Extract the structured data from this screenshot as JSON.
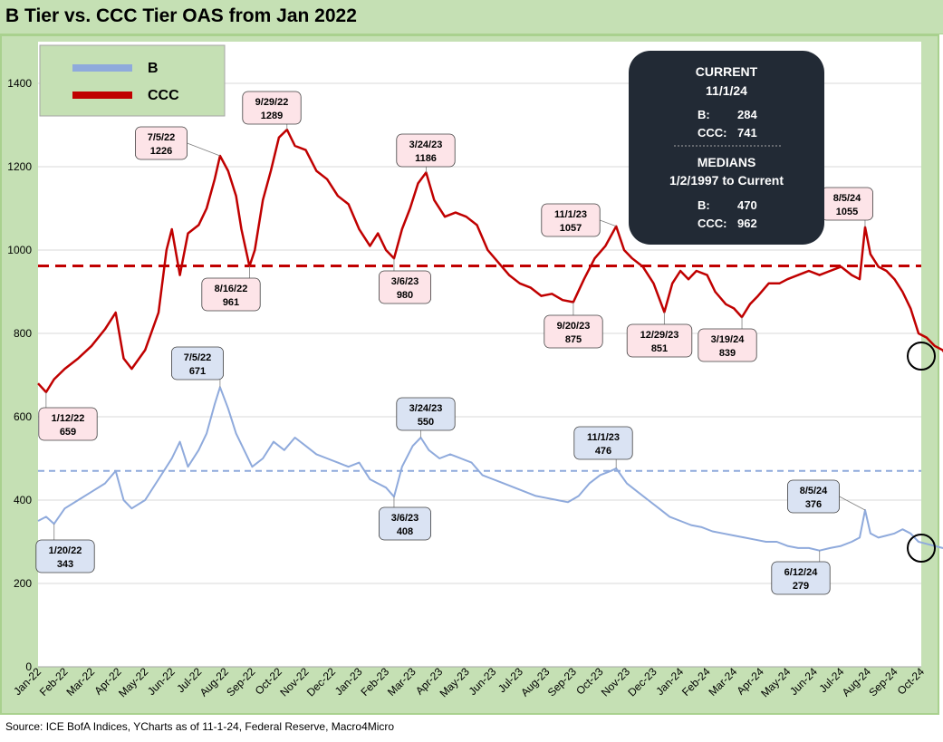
{
  "title": "B Tier vs. CCC Tier OAS from Jan 2022",
  "source": "Source: ICE BofA Indices, YCharts as of 11-1-24, Federal Reserve, Macro4Micro",
  "colors": {
    "b": "#8faadc",
    "ccc": "#c00000",
    "panel_bg": "#c5e0b4",
    "plot_bg": "#ffffff",
    "info_box": "#222a35",
    "ccc_label_bg": "#fde4e8",
    "b_label_bg": "#dae3f3"
  },
  "info_box": {
    "current_title": "CURRENT",
    "current_date": "11/1/24",
    "current_b_label": "B:",
    "current_b_value": "284",
    "current_ccc_label": "CCC:",
    "current_ccc_value": "741",
    "medians_title": "MEDIANS",
    "medians_range": "1/2/1997 to Current",
    "median_b_label": "B:",
    "median_b_value": "470",
    "median_ccc_label": "CCC:",
    "median_ccc_value": "962"
  },
  "chart_data": {
    "type": "line",
    "title": "B Tier vs. CCC Tier OAS from Jan 2022",
    "xlabel": "",
    "ylabel": "",
    "ylim": [
      0,
      1500
    ],
    "yticks": [
      0,
      200,
      400,
      600,
      800,
      1000,
      1200,
      1400
    ],
    "categories": [
      "Jan-22",
      "Feb-22",
      "Mar-22",
      "Apr-22",
      "May-22",
      "Jun-22",
      "Jul-22",
      "Aug-22",
      "Sep-22",
      "Oct-22",
      "Nov-22",
      "Dec-22",
      "Jan-23",
      "Feb-23",
      "Mar-23",
      "Apr-23",
      "May-23",
      "Jun-23",
      "Jul-23",
      "Aug-23",
      "Sep-23",
      "Oct-23",
      "Nov-23",
      "Dec-23",
      "Jan-24",
      "Feb-24",
      "Mar-24",
      "Apr-24",
      "May-24",
      "Jun-24",
      "Jul-24",
      "Aug-24",
      "Sep-24",
      "Oct-24"
    ],
    "legend": {
      "position": "top-left",
      "entries": [
        "B",
        "CCC"
      ]
    },
    "series": [
      {
        "name": "CCC",
        "color": "#c00000",
        "median": 962,
        "points": [
          [
            0,
            680
          ],
          [
            0.3,
            659
          ],
          [
            0.6,
            690
          ],
          [
            1,
            715
          ],
          [
            1.5,
            740
          ],
          [
            2,
            770
          ],
          [
            2.5,
            810
          ],
          [
            2.9,
            850
          ],
          [
            3.2,
            740
          ],
          [
            3.5,
            715
          ],
          [
            4,
            760
          ],
          [
            4.5,
            850
          ],
          [
            4.8,
            1000
          ],
          [
            5,
            1050
          ],
          [
            5.3,
            940
          ],
          [
            5.6,
            1040
          ],
          [
            6,
            1060
          ],
          [
            6.3,
            1100
          ],
          [
            6.6,
            1170
          ],
          [
            6.8,
            1226
          ],
          [
            7.1,
            1190
          ],
          [
            7.4,
            1130
          ],
          [
            7.6,
            1050
          ],
          [
            7.9,
            961
          ],
          [
            8.1,
            1000
          ],
          [
            8.4,
            1120
          ],
          [
            8.7,
            1190
          ],
          [
            9,
            1270
          ],
          [
            9.3,
            1289
          ],
          [
            9.6,
            1250
          ],
          [
            10,
            1240
          ],
          [
            10.4,
            1190
          ],
          [
            10.8,
            1170
          ],
          [
            11.2,
            1130
          ],
          [
            11.6,
            1110
          ],
          [
            12,
            1050
          ],
          [
            12.4,
            1010
          ],
          [
            12.7,
            1040
          ],
          [
            13,
            1000
          ],
          [
            13.3,
            980
          ],
          [
            13.6,
            1050
          ],
          [
            13.9,
            1100
          ],
          [
            14.2,
            1160
          ],
          [
            14.5,
            1186
          ],
          [
            14.8,
            1120
          ],
          [
            15.2,
            1080
          ],
          [
            15.6,
            1090
          ],
          [
            16,
            1080
          ],
          [
            16.4,
            1060
          ],
          [
            16.8,
            1000
          ],
          [
            17.2,
            970
          ],
          [
            17.6,
            940
          ],
          [
            18,
            920
          ],
          [
            18.4,
            910
          ],
          [
            18.8,
            890
          ],
          [
            19.2,
            895
          ],
          [
            19.6,
            880
          ],
          [
            20,
            875
          ],
          [
            20.4,
            930
          ],
          [
            20.8,
            980
          ],
          [
            21.2,
            1010
          ],
          [
            21.6,
            1057
          ],
          [
            21.9,
            1000
          ],
          [
            22.2,
            980
          ],
          [
            22.6,
            960
          ],
          [
            23,
            920
          ],
          [
            23.4,
            851
          ],
          [
            23.7,
            920
          ],
          [
            24,
            950
          ],
          [
            24.3,
            930
          ],
          [
            24.6,
            950
          ],
          [
            25,
            940
          ],
          [
            25.3,
            900
          ],
          [
            25.7,
            870
          ],
          [
            26,
            860
          ],
          [
            26.3,
            839
          ],
          [
            26.6,
            870
          ],
          [
            26.9,
            890
          ],
          [
            27.3,
            920
          ],
          [
            27.7,
            920
          ],
          [
            28,
            930
          ],
          [
            28.4,
            940
          ],
          [
            28.8,
            950
          ],
          [
            29.2,
            940
          ],
          [
            29.6,
            950
          ],
          [
            30,
            960
          ],
          [
            30.4,
            940
          ],
          [
            30.7,
            930
          ],
          [
            30.9,
            1055
          ],
          [
            31.1,
            990
          ],
          [
            31.4,
            960
          ],
          [
            31.7,
            950
          ],
          [
            32,
            930
          ],
          [
            32.3,
            900
          ],
          [
            32.6,
            860
          ],
          [
            32.9,
            800
          ],
          [
            33.2,
            790
          ],
          [
            33.5,
            770
          ],
          [
            33.8,
            760
          ],
          [
            34,
            741
          ]
        ],
        "annotations": [
          {
            "date": "1/12/22",
            "value": "659",
            "x": 0.3,
            "y": 659
          },
          {
            "date": "7/5/22",
            "value": "1226",
            "x": 6.8,
            "y": 1226
          },
          {
            "date": "8/16/22",
            "value": "961",
            "x": 7.9,
            "y": 961
          },
          {
            "date": "9/29/22",
            "value": "1289",
            "x": 9.3,
            "y": 1289
          },
          {
            "date": "3/6/23",
            "value": "980",
            "x": 13.3,
            "y": 980
          },
          {
            "date": "3/24/23",
            "value": "1186",
            "x": 14.5,
            "y": 1186
          },
          {
            "date": "9/20/23",
            "value": "875",
            "x": 20,
            "y": 875
          },
          {
            "date": "11/1/23",
            "value": "1057",
            "x": 21.6,
            "y": 1057
          },
          {
            "date": "12/29/23",
            "value": "851",
            "x": 23.4,
            "y": 851
          },
          {
            "date": "3/19/24",
            "value": "839",
            "x": 26.3,
            "y": 839
          },
          {
            "date": "8/5/24",
            "value": "1055",
            "x": 30.9,
            "y": 1055
          }
        ]
      },
      {
        "name": "B",
        "color": "#8faadc",
        "median": 470,
        "points": [
          [
            0,
            350
          ],
          [
            0.3,
            360
          ],
          [
            0.6,
            343
          ],
          [
            1,
            380
          ],
          [
            1.5,
            400
          ],
          [
            2,
            420
          ],
          [
            2.5,
            440
          ],
          [
            2.9,
            470
          ],
          [
            3.2,
            400
          ],
          [
            3.5,
            380
          ],
          [
            4,
            400
          ],
          [
            4.5,
            450
          ],
          [
            5,
            500
          ],
          [
            5.3,
            540
          ],
          [
            5.6,
            480
          ],
          [
            6,
            520
          ],
          [
            6.3,
            560
          ],
          [
            6.6,
            630
          ],
          [
            6.8,
            671
          ],
          [
            7.1,
            620
          ],
          [
            7.4,
            560
          ],
          [
            7.7,
            520
          ],
          [
            8,
            480
          ],
          [
            8.4,
            500
          ],
          [
            8.8,
            540
          ],
          [
            9.2,
            520
          ],
          [
            9.6,
            550
          ],
          [
            10,
            530
          ],
          [
            10.4,
            510
          ],
          [
            10.8,
            500
          ],
          [
            11.2,
            490
          ],
          [
            11.6,
            480
          ],
          [
            12,
            490
          ],
          [
            12.4,
            450
          ],
          [
            12.7,
            440
          ],
          [
            13,
            430
          ],
          [
            13.3,
            408
          ],
          [
            13.6,
            480
          ],
          [
            14,
            530
          ],
          [
            14.3,
            550
          ],
          [
            14.6,
            520
          ],
          [
            15,
            500
          ],
          [
            15.4,
            510
          ],
          [
            15.8,
            500
          ],
          [
            16.2,
            490
          ],
          [
            16.6,
            460
          ],
          [
            17,
            450
          ],
          [
            17.4,
            440
          ],
          [
            17.8,
            430
          ],
          [
            18.2,
            420
          ],
          [
            18.6,
            410
          ],
          [
            19,
            405
          ],
          [
            19.4,
            400
          ],
          [
            19.8,
            395
          ],
          [
            20.2,
            410
          ],
          [
            20.6,
            440
          ],
          [
            21,
            460
          ],
          [
            21.4,
            470
          ],
          [
            21.6,
            476
          ],
          [
            22,
            440
          ],
          [
            22.4,
            420
          ],
          [
            22.8,
            400
          ],
          [
            23.2,
            380
          ],
          [
            23.6,
            360
          ],
          [
            24,
            350
          ],
          [
            24.4,
            340
          ],
          [
            24.8,
            335
          ],
          [
            25.2,
            325
          ],
          [
            25.6,
            320
          ],
          [
            26,
            315
          ],
          [
            26.4,
            310
          ],
          [
            26.8,
            305
          ],
          [
            27.2,
            300
          ],
          [
            27.6,
            300
          ],
          [
            28,
            290
          ],
          [
            28.4,
            285
          ],
          [
            28.8,
            285
          ],
          [
            29.2,
            279
          ],
          [
            29.6,
            285
          ],
          [
            30,
            290
          ],
          [
            30.4,
            300
          ],
          [
            30.7,
            310
          ],
          [
            30.9,
            376
          ],
          [
            31.1,
            320
          ],
          [
            31.4,
            310
          ],
          [
            31.7,
            315
          ],
          [
            32,
            320
          ],
          [
            32.3,
            330
          ],
          [
            32.6,
            320
          ],
          [
            32.9,
            300
          ],
          [
            33.2,
            295
          ],
          [
            33.5,
            290
          ],
          [
            33.8,
            285
          ],
          [
            34,
            284
          ]
        ],
        "annotations": [
          {
            "date": "1/20/22",
            "value": "343",
            "x": 0.6,
            "y": 343
          },
          {
            "date": "7/5/22",
            "value": "671",
            "x": 6.8,
            "y": 671
          },
          {
            "date": "3/6/23",
            "value": "408",
            "x": 13.3,
            "y": 408
          },
          {
            "date": "3/24/23",
            "value": "550",
            "x": 14.3,
            "y": 550
          },
          {
            "date": "11/1/23",
            "value": "476",
            "x": 21.6,
            "y": 476
          },
          {
            "date": "6/12/24",
            "value": "279",
            "x": 29.2,
            "y": 279
          },
          {
            "date": "8/5/24",
            "value": "376",
            "x": 30.9,
            "y": 376
          }
        ]
      }
    ]
  }
}
